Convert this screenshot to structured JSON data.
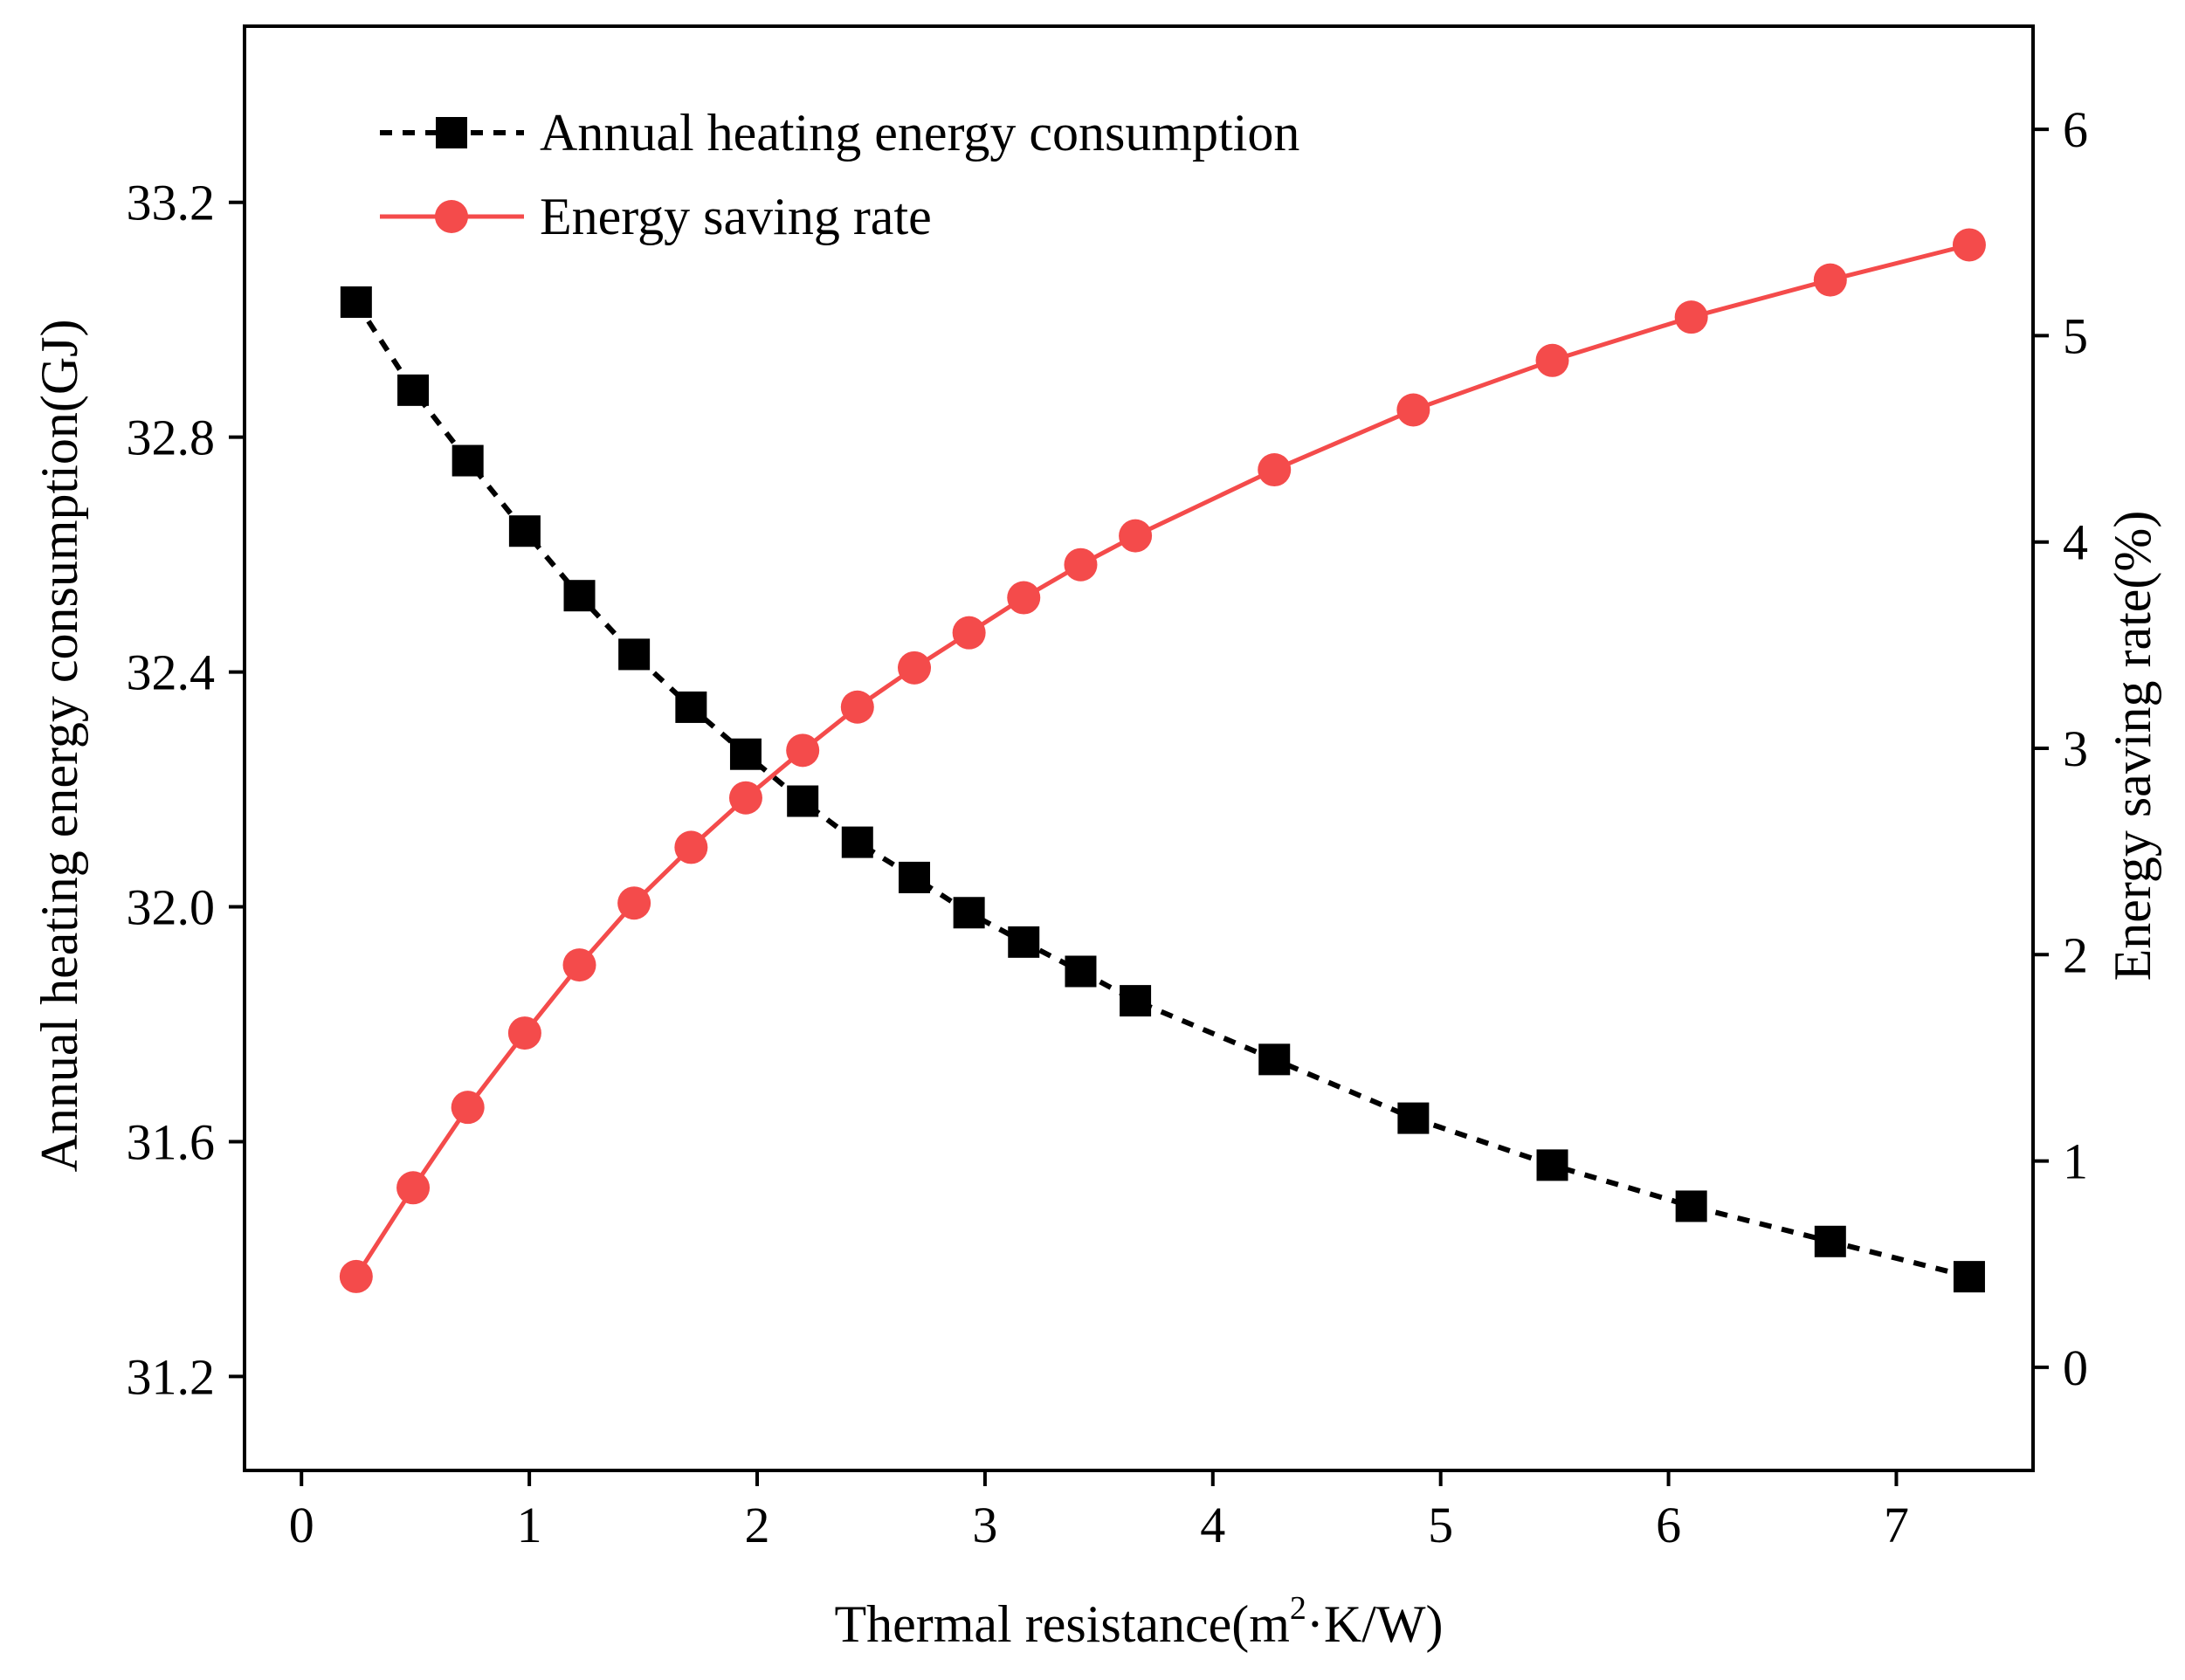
{
  "chart_data": {
    "type": "line",
    "title": "",
    "xlabel": {
      "main": "Thermal resistance(m",
      "sup": "2",
      "tail": "·K/W)"
    },
    "ylabel_left": "Annual heating energy consumption(GJ)",
    "ylabel_right": "Energy saving rate(%)",
    "xlim": [
      -0.25,
      7.6
    ],
    "ylim_left": [
      31.04,
      33.5
    ],
    "ylim_right": [
      -0.5,
      6.5
    ],
    "x_ticks": [
      0,
      1,
      2,
      3,
      4,
      5,
      6,
      7
    ],
    "x_tick_labels": [
      "0",
      "1",
      "2",
      "3",
      "4",
      "5",
      "6",
      "7"
    ],
    "y_left_ticks": [
      31.2,
      31.6,
      32.0,
      32.4,
      32.8,
      33.2
    ],
    "y_left_tick_labels": [
      "31.2",
      "31.6",
      "32.0",
      "32.4",
      "32.8",
      "33.2"
    ],
    "y_right_ticks": [
      0,
      1,
      2,
      3,
      4,
      5,
      6
    ],
    "y_right_tick_labels": [
      "0",
      "1",
      "2",
      "3",
      "4",
      "5",
      "6"
    ],
    "legend_position": "top-left",
    "grid": false,
    "x": [
      0.24,
      0.49,
      0.73,
      0.98,
      1.22,
      1.46,
      1.71,
      1.95,
      2.2,
      2.44,
      2.69,
      2.93,
      3.17,
      3.42,
      3.66,
      4.27,
      4.88,
      5.49,
      6.1,
      6.71,
      7.32
    ],
    "series": [
      {
        "name": "Annual heating energy consumption",
        "axis": "left",
        "color": "#000000",
        "marker": "square",
        "line_style": "dashed",
        "values": [
          33.03,
          32.88,
          32.76,
          32.64,
          32.53,
          32.43,
          32.34,
          32.26,
          32.18,
          32.11,
          32.05,
          31.99,
          31.94,
          31.89,
          31.84,
          31.74,
          31.64,
          31.56,
          31.49,
          31.43,
          31.37
        ]
      },
      {
        "name": "Energy saving rate",
        "axis": "right",
        "color": "#f44b4b",
        "marker": "circle",
        "line_style": "solid",
        "values": [
          0.44,
          0.87,
          1.26,
          1.62,
          1.95,
          2.25,
          2.52,
          2.76,
          2.99,
          3.2,
          3.39,
          3.56,
          3.73,
          3.89,
          4.03,
          4.35,
          4.64,
          4.88,
          5.09,
          5.27,
          5.44
        ]
      }
    ]
  }
}
